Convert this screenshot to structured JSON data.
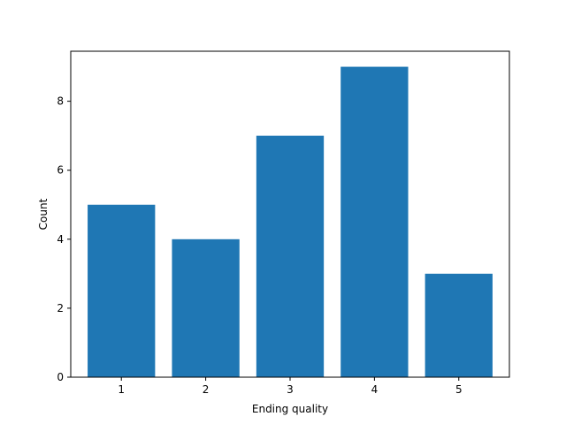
{
  "chart_data": {
    "type": "bar",
    "categories": [
      "1",
      "2",
      "3",
      "4",
      "5"
    ],
    "values": [
      5,
      4,
      7,
      9,
      3
    ],
    "title": "",
    "xlabel": "Ending quality",
    "ylabel": "Count",
    "ylim": [
      0,
      9.45
    ],
    "yticks": [
      0,
      2,
      4,
      6,
      8
    ],
    "grid": false,
    "legend": "none",
    "bar_color": "#1f77b4"
  }
}
